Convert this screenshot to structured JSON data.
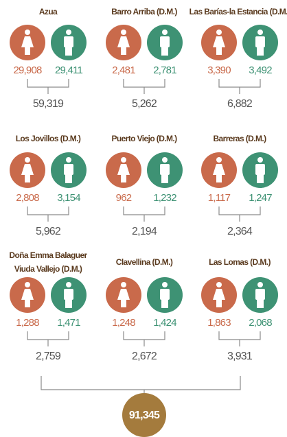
{
  "regions": [
    {
      "name": [
        "Azua"
      ],
      "female": "29,908",
      "male": "29,411",
      "total": "59,319"
    },
    {
      "name": [
        "Barro Arriba (D.M.)"
      ],
      "female": "2,481",
      "male": "2,781",
      "total": "5,262"
    },
    {
      "name": [
        "Las Barías-la Estancia (D.M.)"
      ],
      "female": "3,390",
      "male": "3,492",
      "total": "6,882"
    },
    {
      "name": [
        "Los Jovillos (D.M.)"
      ],
      "female": "2,808",
      "male": "3,154",
      "total": "5,962"
    },
    {
      "name": [
        "Puerto Viejo (D.M.)"
      ],
      "female": "962",
      "male": "1,232",
      "total": "2,194"
    },
    {
      "name": [
        "Barreras (D.M.)"
      ],
      "female": "1,117",
      "male": "1,247",
      "total": "2,364"
    },
    {
      "name": [
        "Doña Emma Balaguer",
        "Viuda Vallejo (D.M.)"
      ],
      "female": "1,288",
      "male": "1,471",
      "total": "2,759"
    },
    {
      "name": [
        "Clavellina (D.M.)"
      ],
      "female": "1,248",
      "male": "1,424",
      "total": "2,672"
    },
    {
      "name": [
        "Las Lomas (D.M.)"
      ],
      "female": "1,863",
      "male": "2,068",
      "total": "3,931"
    }
  ],
  "grand_total": "91,345"
}
